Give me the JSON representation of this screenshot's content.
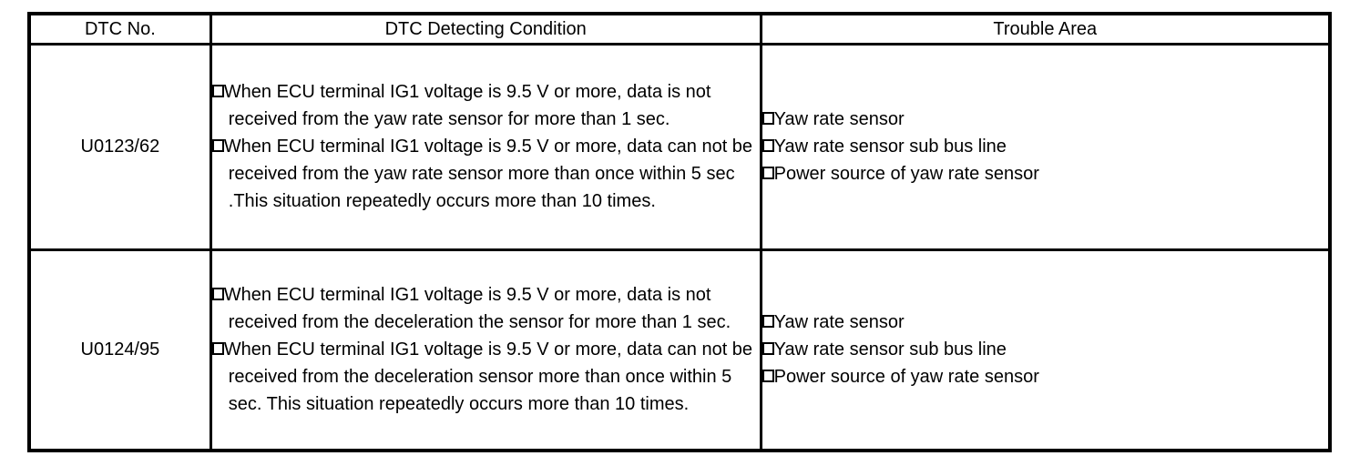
{
  "table": {
    "headers": {
      "dtc_no": "DTC No.",
      "condition": "DTC Detecting Condition",
      "trouble_area": "Trouble Area"
    },
    "rows": [
      {
        "dtc_no": "U0123/62",
        "conditions": [
          "When ECU terminal IG1 voltage is 9.5 V or more, data is not received from the yaw rate sensor for more than 1 sec.",
          "When ECU terminal IG1 voltage is 9.5 V or more, data can not be received from the yaw rate sensor more than once within 5 sec .This situation repeatedly occurs more than 10 times."
        ],
        "trouble_areas": [
          "Yaw rate sensor",
          "Yaw rate sensor sub bus line",
          "Power source of yaw rate sensor"
        ]
      },
      {
        "dtc_no": "U0124/95",
        "conditions": [
          "When ECU terminal IG1 voltage is 9.5 V or more, data is not received from the deceleration the sensor for more than 1 sec.",
          "When ECU terminal IG1 voltage is 9.5 V or more, data can not be received from the deceleration sensor more than once within 5 sec. This situation repeatedly occurs more than 10 times."
        ],
        "trouble_areas": [
          "Yaw rate sensor",
          "Yaw rate sensor sub bus line",
          "Power source of yaw rate sensor"
        ]
      }
    ]
  },
  "icons": {
    "bullet": "square-bullet"
  },
  "colors": {
    "border": "#000000",
    "text": "#000000",
    "background": "#ffffff"
  }
}
